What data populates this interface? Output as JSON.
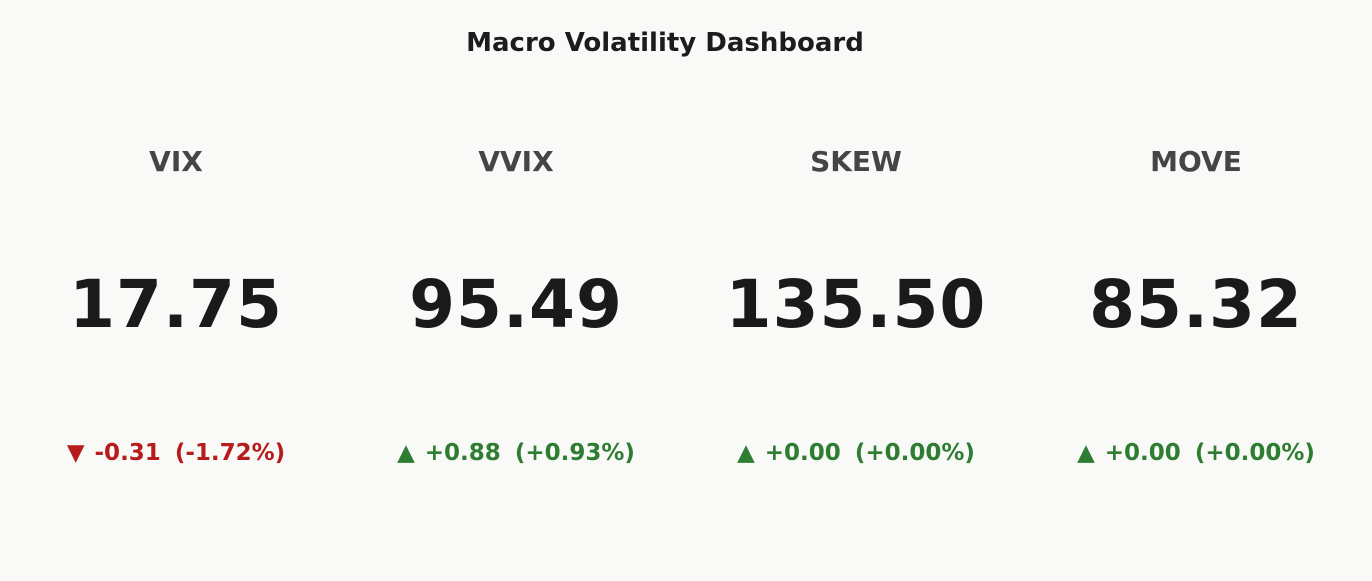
{
  "title": "Macro Volatility Dashboard",
  "colors": {
    "up": "#2e7d32",
    "down": "#b71c1c"
  },
  "chart_data": {
    "type": "table",
    "title": "Macro Volatility Dashboard",
    "cards": [
      {
        "label": "VIX",
        "value": "17.75",
        "direction": "down",
        "arrow": "▼",
        "change": "-0.31",
        "change_pct": "(-1.72%)"
      },
      {
        "label": "VVIX",
        "value": "95.49",
        "direction": "up",
        "arrow": "▲",
        "change": "+0.88",
        "change_pct": "(+0.93%)"
      },
      {
        "label": "SKEW",
        "value": "135.50",
        "direction": "up",
        "arrow": "▲",
        "change": "+0.00",
        "change_pct": "(+0.00%)"
      },
      {
        "label": "MOVE",
        "value": "85.32",
        "direction": "up",
        "arrow": "▲",
        "change": "+0.00",
        "change_pct": "(+0.00%)"
      }
    ]
  }
}
